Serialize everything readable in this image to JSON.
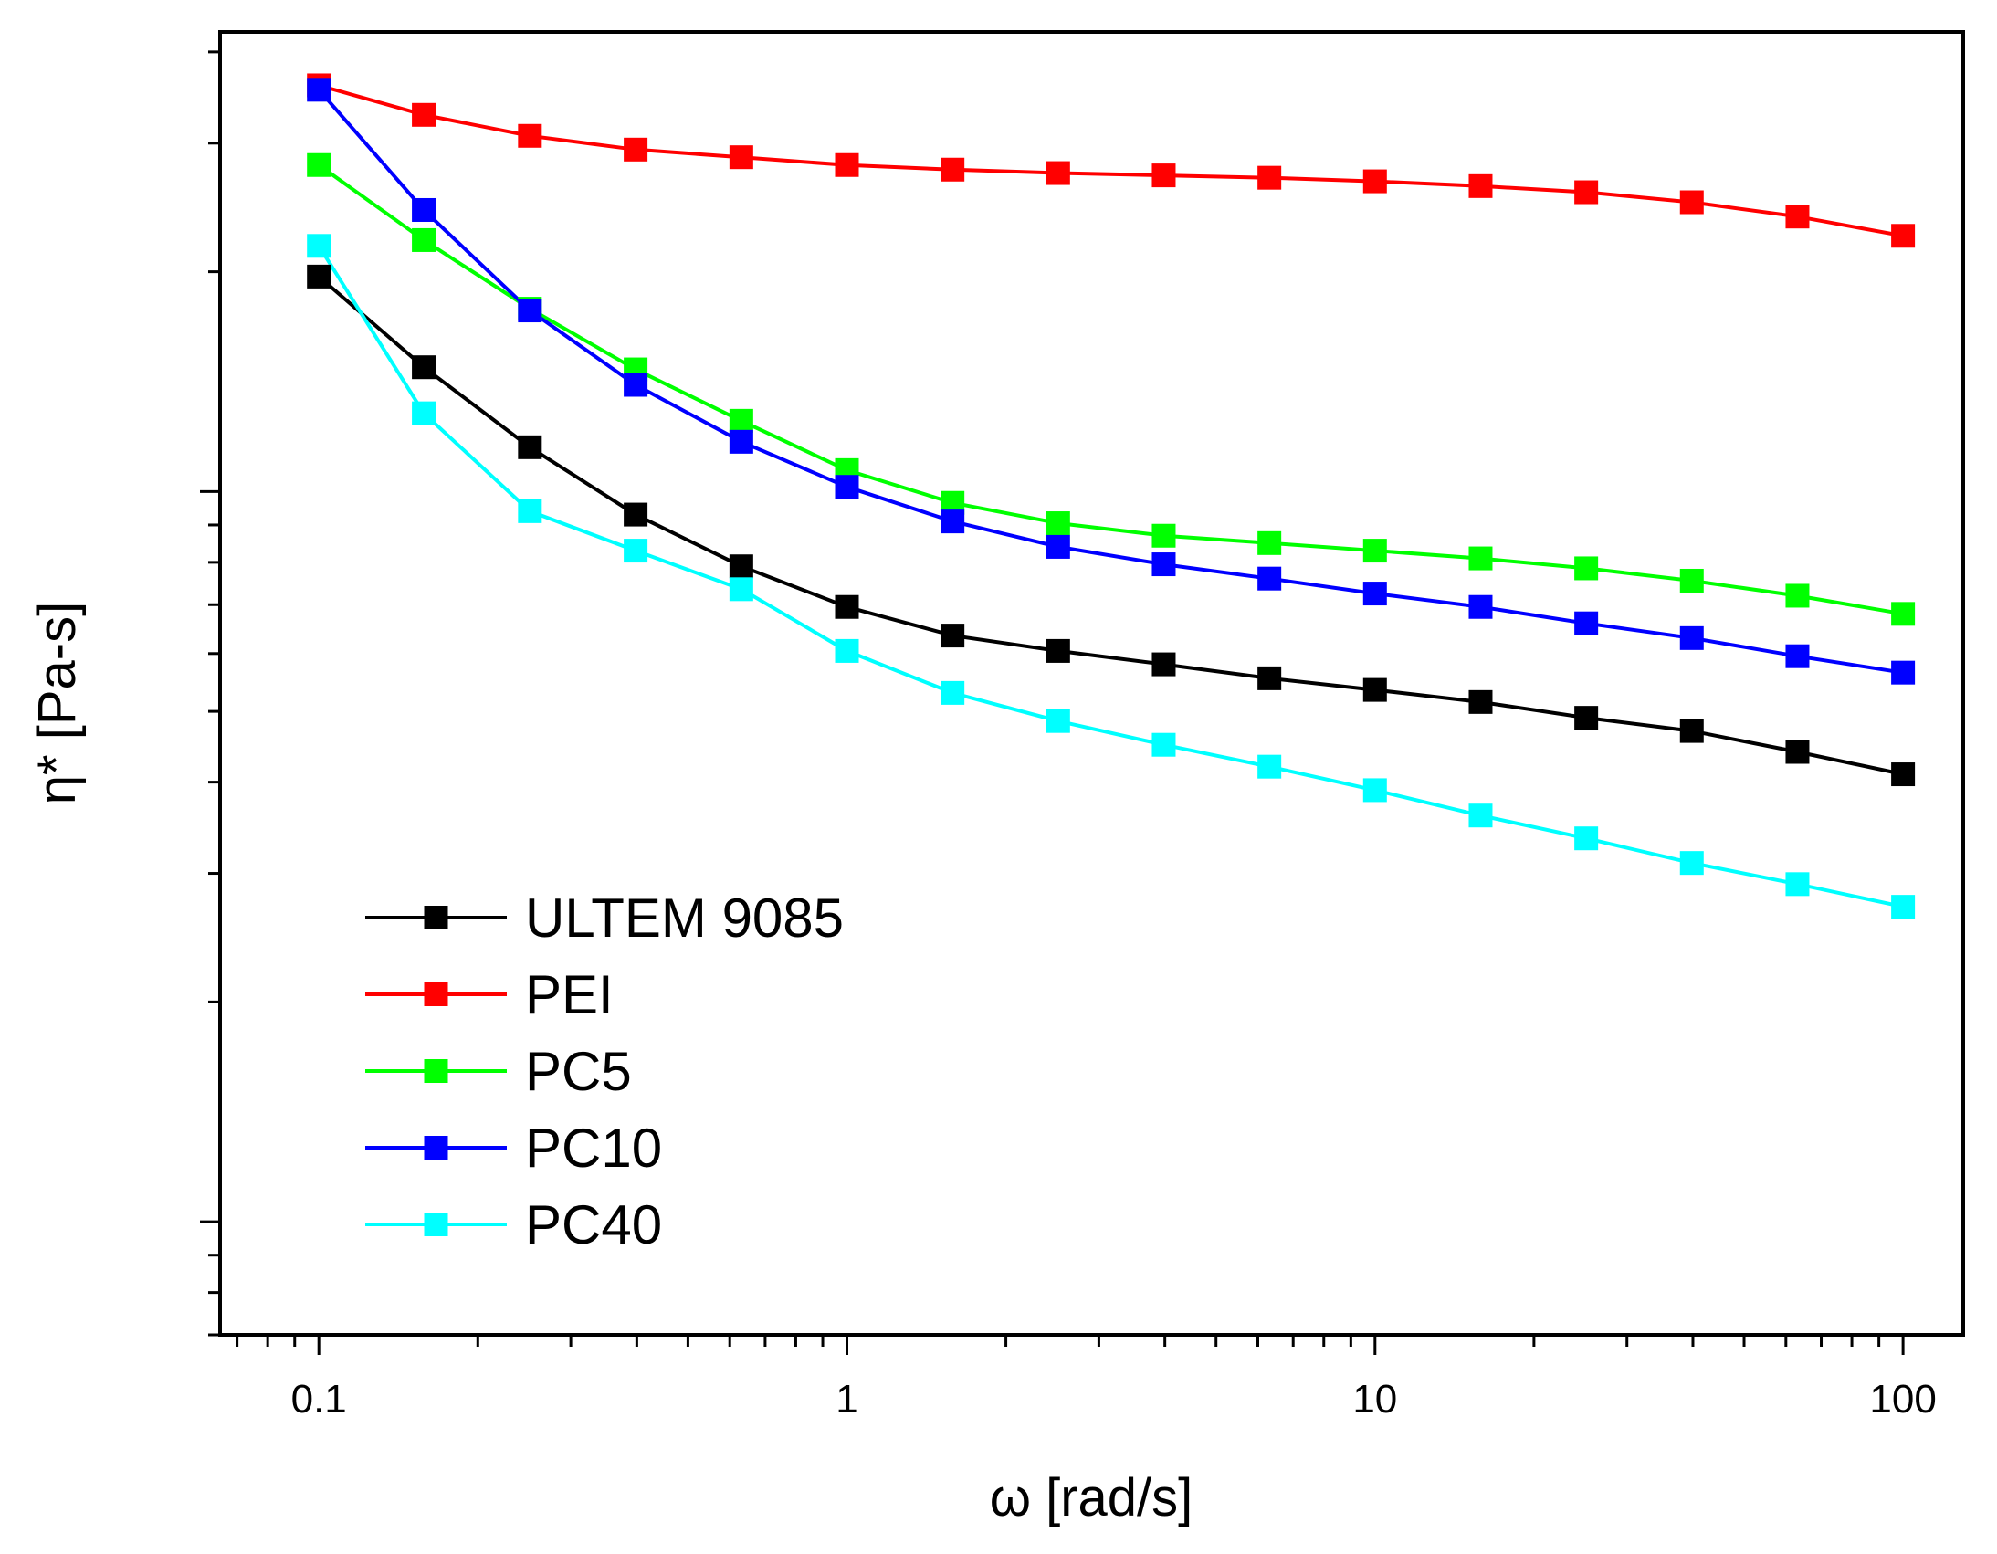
{
  "chart_data": {
    "type": "line",
    "title": "",
    "xlabel": "ω [rad/s]",
    "ylabel": "η* [Pa-s]",
    "x_scale": "log",
    "y_scale": "log",
    "xlim": [
      0.065,
      130
    ],
    "ylim": [
      70,
      4260
    ],
    "grid": false,
    "legend_position": "bottom-left",
    "x_ticks": [
      {
        "value": 0.1,
        "label": "0.1"
      },
      {
        "value": 1,
        "label": "1"
      },
      {
        "value": 10,
        "label": "10"
      },
      {
        "value": 100,
        "label": "100"
      }
    ],
    "x": [
      0.1,
      0.158,
      0.251,
      0.398,
      0.631,
      1,
      1.585,
      2.512,
      3.981,
      6.31,
      10,
      15.85,
      25.12,
      39.81,
      63.1,
      100
    ],
    "series": [
      {
        "name": "ULTEM 9085",
        "color": "#000000",
        "values": [
          1970,
          1480,
          1150,
          930,
          790,
          695,
          635,
          605,
          580,
          555,
          535,
          515,
          490,
          470,
          440,
          410
        ]
      },
      {
        "name": "PEI",
        "color": "#ff0000",
        "values": [
          3600,
          3280,
          3070,
          2940,
          2870,
          2800,
          2760,
          2730,
          2710,
          2690,
          2660,
          2620,
          2570,
          2490,
          2380,
          2240
        ]
      },
      {
        "name": "PC5",
        "color": "#00ff00",
        "values": [
          2800,
          2210,
          1780,
          1470,
          1250,
          1070,
          965,
          905,
          870,
          850,
          830,
          810,
          785,
          755,
          720,
          680
        ]
      },
      {
        "name": "PC10",
        "color": "#0000ff",
        "values": [
          3550,
          2430,
          1770,
          1400,
          1170,
          1015,
          910,
          840,
          795,
          760,
          725,
          695,
          660,
          630,
          595,
          565
        ]
      },
      {
        "name": "PC40",
        "color": "#00ffff",
        "values": [
          2170,
          1280,
          940,
          830,
          735,
          605,
          530,
          485,
          450,
          420,
          390,
          360,
          335,
          310,
          290,
          270
        ]
      }
    ]
  }
}
